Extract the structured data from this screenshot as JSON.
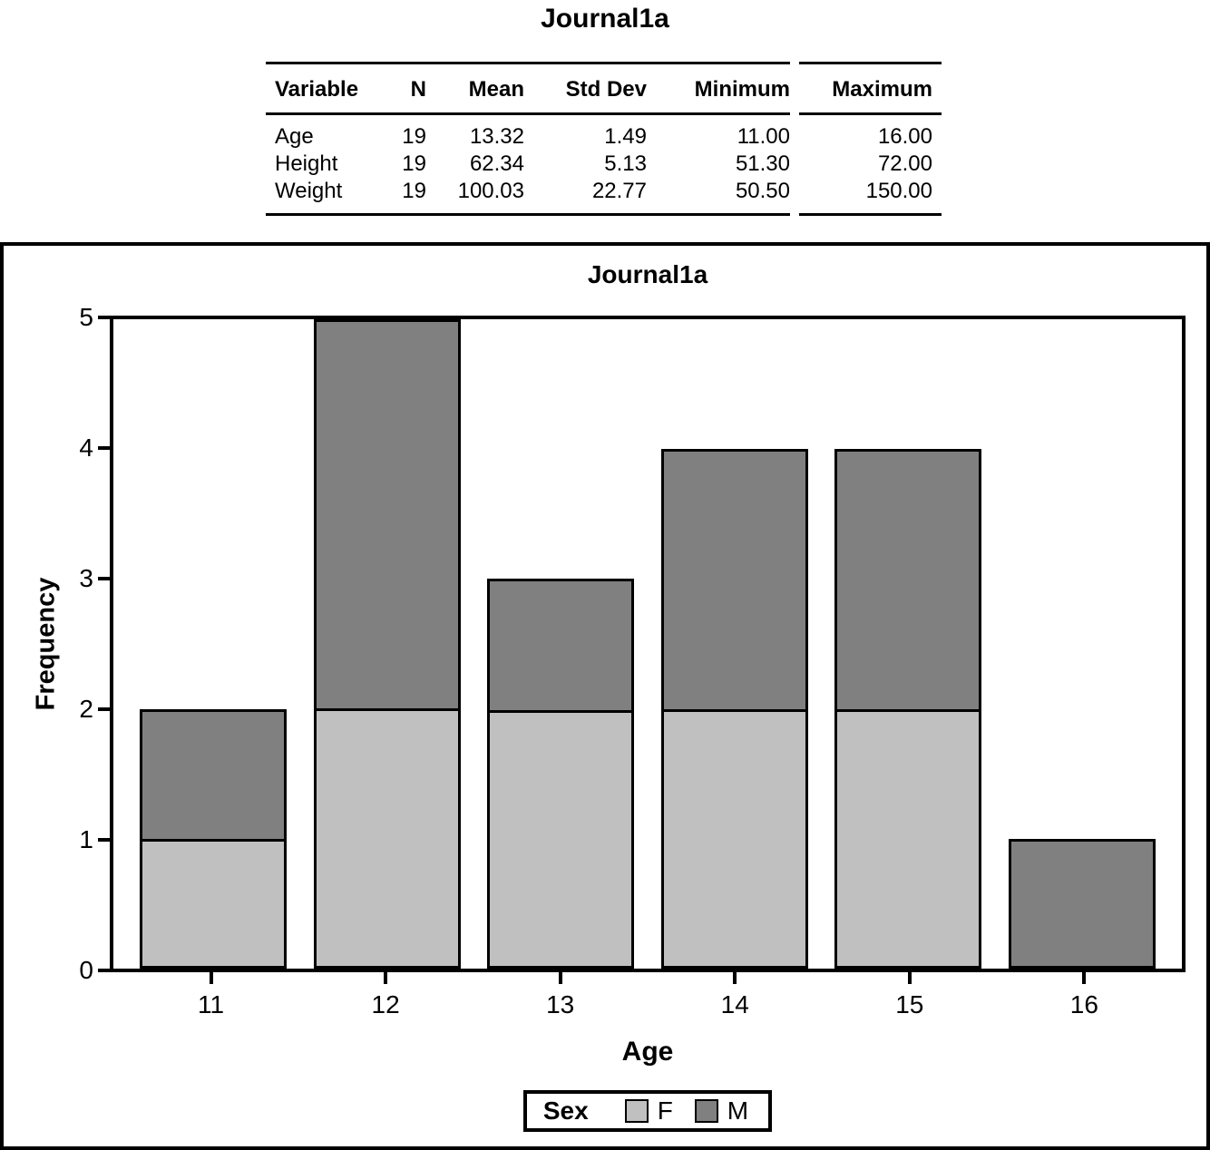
{
  "page_title": "Journal1a",
  "stats_table": {
    "columns": [
      "Variable",
      "N",
      "Mean",
      "Std Dev",
      "Minimum",
      "Maximum"
    ],
    "rows": [
      [
        "Age",
        "19",
        "13.32",
        "1.49",
        "11.00",
        "16.00"
      ],
      [
        "Height",
        "19",
        "62.34",
        "5.13",
        "51.30",
        "72.00"
      ],
      [
        "Weight",
        "19",
        "100.03",
        "22.77",
        "50.50",
        "150.00"
      ]
    ]
  },
  "chart_data": {
    "type": "bar",
    "stacked": true,
    "title": "Journal1a",
    "xlabel": "Age",
    "ylabel": "Frequency",
    "categories": [
      "11",
      "12",
      "13",
      "14",
      "15",
      "16"
    ],
    "series": [
      {
        "name": "F",
        "color": "#c0c0c0",
        "values": [
          1,
          2,
          2,
          2,
          2,
          0
        ]
      },
      {
        "name": "M",
        "color": "#808080",
        "values": [
          1,
          3,
          1,
          2,
          2,
          1
        ]
      }
    ],
    "totals": [
      2,
      5,
      3,
      4,
      4,
      1
    ],
    "ylim": [
      0,
      5
    ],
    "yticks": [
      0,
      1,
      2,
      3,
      4,
      5
    ],
    "grid": false,
    "legend": {
      "title": "Sex",
      "position": "bottom",
      "entries": [
        "F",
        "M"
      ]
    }
  }
}
